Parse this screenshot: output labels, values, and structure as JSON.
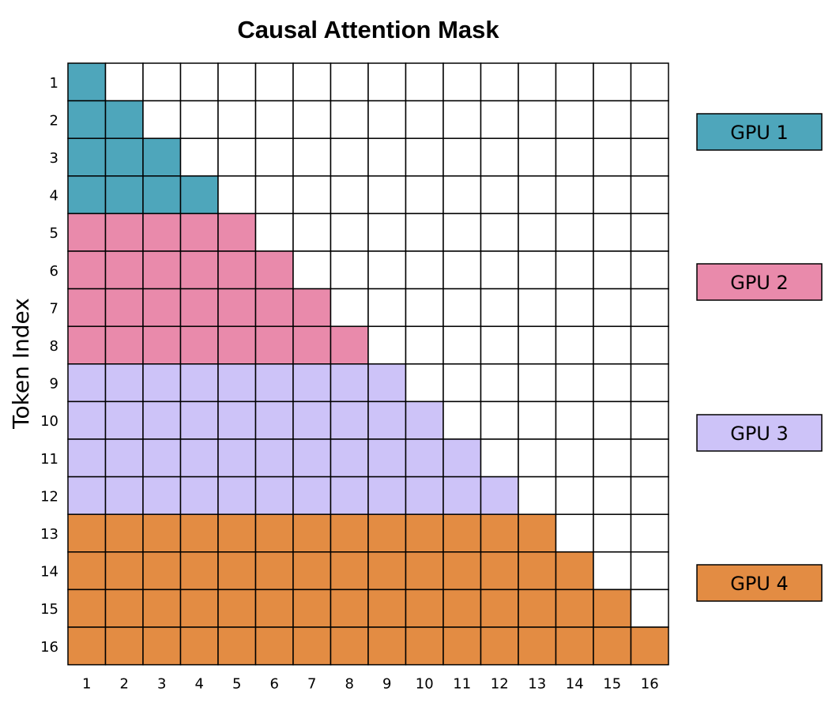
{
  "title": "Causal Attention Mask",
  "y_axis_label": "Token Index",
  "row_labels": [
    "1",
    "2",
    "3",
    "4",
    "5",
    "6",
    "7",
    "8",
    "9",
    "10",
    "11",
    "12",
    "13",
    "14",
    "15",
    "16"
  ],
  "col_labels": [
    "1",
    "2",
    "3",
    "4",
    "5",
    "6",
    "7",
    "8",
    "9",
    "10",
    "11",
    "12",
    "13",
    "14",
    "15",
    "16"
  ],
  "gpus": [
    {
      "label": "GPU 1",
      "color": "#4ea6bb",
      "rows": [
        1,
        4
      ]
    },
    {
      "label": "GPU 2",
      "color": "#e98aab",
      "rows": [
        5,
        8
      ]
    },
    {
      "label": "GPU 3",
      "color": "#cdc3f8",
      "rows": [
        9,
        12
      ]
    },
    {
      "label": "GPU 4",
      "color": "#e38c43",
      "rows": [
        13,
        16
      ]
    }
  ],
  "mask_rule": "cell(row, col) is filled when col <= row",
  "empty_color": "#ffffff",
  "grid_color": "#000000"
}
